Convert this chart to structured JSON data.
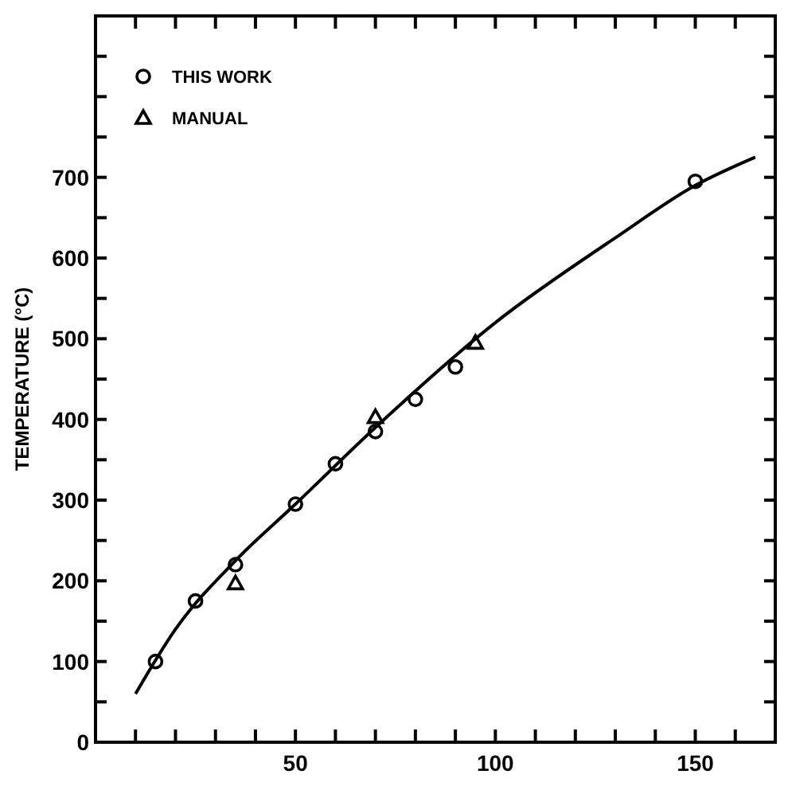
{
  "chart_data": {
    "type": "scatter",
    "ylabel": "TEMPERATURE (°C)",
    "xlim": [
      0,
      170
    ],
    "ylim": [
      0,
      900
    ],
    "xticks": [
      {
        "value": 10,
        "label": null
      },
      {
        "value": 20,
        "label": null
      },
      {
        "value": 30,
        "label": null
      },
      {
        "value": 40,
        "label": null
      },
      50,
      {
        "value": 60,
        "label": null
      },
      {
        "value": 70,
        "label": null
      },
      {
        "value": 80,
        "label": null
      },
      {
        "value": 90,
        "label": null
      },
      100,
      {
        "value": 110,
        "label": null
      },
      {
        "value": 120,
        "label": null
      },
      {
        "value": 130,
        "label": null
      },
      {
        "value": 140,
        "label": null
      },
      150,
      {
        "value": 160,
        "label": null
      }
    ],
    "yticks": [
      0,
      {
        "value": 50,
        "label": null
      },
      100,
      {
        "value": 150,
        "label": null
      },
      200,
      {
        "value": 250,
        "label": null
      },
      300,
      {
        "value": 350,
        "label": null
      },
      400,
      {
        "value": 450,
        "label": null
      },
      500,
      {
        "value": 550,
        "label": null
      },
      600,
      {
        "value": 650,
        "label": null
      },
      700,
      {
        "value": 750,
        "label": null
      },
      {
        "value": 800,
        "label": null
      },
      {
        "value": 850,
        "label": null
      }
    ],
    "legend": "top left",
    "grid": false,
    "series": [
      {
        "name": "THIS WORK",
        "marker": "circle",
        "color": "#000000",
        "x": [
          15,
          25,
          35,
          50,
          60,
          70,
          80,
          90,
          150
        ],
        "values": [
          100,
          175,
          220,
          295,
          345,
          385,
          425,
          465,
          695
        ]
      },
      {
        "name": "MANUAL",
        "marker": "triangle",
        "color": "#000000",
        "x": [
          35,
          70,
          95
        ],
        "values": [
          197,
          403,
          495
        ]
      },
      {
        "type": "line",
        "color": "#000000",
        "marker": "none",
        "x": [
          10,
          20,
          35,
          50,
          70,
          100,
          130,
          150,
          165
        ],
        "values": [
          60,
          140,
          225,
          295,
          390,
          520,
          625,
          690,
          725
        ]
      }
    ]
  }
}
